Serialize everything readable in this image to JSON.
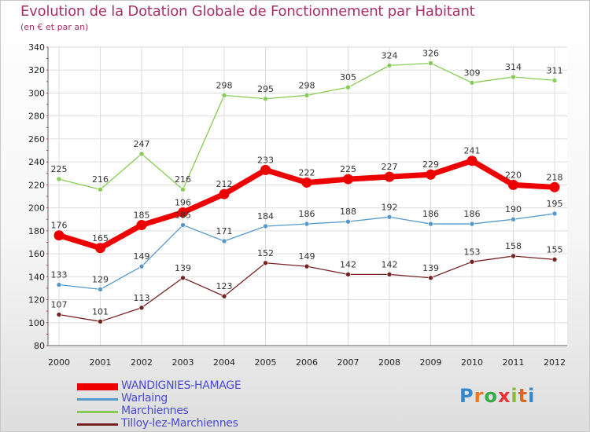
{
  "title": "Evolution de la Dotation Globale de Fonctionnement par Habitant",
  "subtitle": "(en € et par an)",
  "colors": {
    "wandignies": "#ee0000",
    "warlaing": "#5599cc",
    "marchiennes": "#88cc55",
    "tilloy": "#772222"
  },
  "logo": {
    "text": "Proxiti",
    "letters": [
      "P",
      "r",
      "o",
      "x",
      "i",
      "t",
      "i"
    ],
    "colors": [
      "#3388cc",
      "#ee7722",
      "#33aa44",
      "#ee3333",
      "#88bb33",
      "#dd6622",
      "#3388cc"
    ]
  },
  "chart_data": {
    "type": "line",
    "x": [
      2000,
      2001,
      2002,
      2003,
      2004,
      2005,
      2006,
      2007,
      2008,
      2009,
      2010,
      2011,
      2012
    ],
    "ylim": [
      80,
      340
    ],
    "yticks": [
      80,
      100,
      120,
      140,
      160,
      180,
      200,
      220,
      240,
      260,
      280,
      300,
      320,
      340
    ],
    "grid": true,
    "legend": "bottom-left",
    "series": [
      {
        "name": "WANDIGNIES-HAMAGE",
        "key": "wandignies",
        "values": [
          176,
          165,
          185,
          196,
          212,
          233,
          222,
          225,
          227,
          229,
          241,
          220,
          218
        ]
      },
      {
        "name": "Warlaing",
        "key": "warlaing",
        "values": [
          133,
          129,
          149,
          185,
          171,
          184,
          186,
          188,
          192,
          186,
          186,
          190,
          195
        ]
      },
      {
        "name": "Marchiennes",
        "key": "marchiennes",
        "values": [
          225,
          216,
          247,
          216,
          298,
          295,
          298,
          305,
          324,
          326,
          309,
          314,
          311
        ]
      },
      {
        "name": "Tilloy-lez-Marchiennes",
        "key": "tilloy",
        "values": [
          107,
          101,
          113,
          139,
          123,
          152,
          149,
          142,
          142,
          139,
          153,
          158,
          155
        ]
      }
    ]
  }
}
